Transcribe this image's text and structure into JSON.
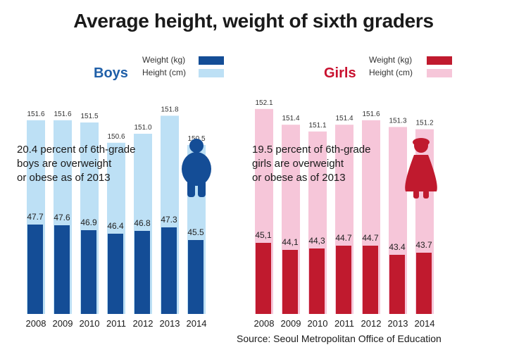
{
  "title": "Average height, weight of sixth graders",
  "source": "Source: Seoul Metropolitan Office of Education",
  "legend": {
    "weight": "Weight (kg)",
    "height": "Height (cm)"
  },
  "colors": {
    "boys_weight": "#144d96",
    "boys_height": "#bde0f5",
    "girls_weight": "#c01a2e",
    "girls_height": "#f6c6d9",
    "boys_label": "#1f5fa8",
    "girls_label": "#c8102e"
  },
  "chart_data": [
    {
      "type": "bar",
      "panel": "Boys",
      "categories": [
        "2008",
        "2009",
        "2010",
        "2011",
        "2012",
        "2013",
        "2014"
      ],
      "series": [
        {
          "name": "Weight (kg)",
          "values": [
            47.7,
            47.6,
            46.9,
            46.4,
            46.8,
            47.3,
            45.5
          ],
          "labels": [
            "47.7",
            "47.6",
            "46.9",
            "46.4",
            "46.8",
            "47.3",
            "45.5"
          ]
        },
        {
          "name": "Height (cm)",
          "values": [
            151.6,
            151.6,
            151.5,
            150.6,
            151.0,
            151.8,
            150.5
          ],
          "labels": [
            "151.6",
            "151.6",
            "151.5",
            "150.6",
            "151.0",
            "151.8",
            "150.5"
          ]
        }
      ],
      "annotation": [
        "20.4 percent of 6th-grade",
        "boys are overweight",
        "or obese as of 2013"
      ],
      "icon": "boy-figure-icon"
    },
    {
      "type": "bar",
      "panel": "Girls",
      "categories": [
        "2008",
        "2009",
        "2010",
        "2011",
        "2012",
        "2013",
        "2014"
      ],
      "series": [
        {
          "name": "Weight (kg)",
          "values": [
            45.1,
            44.1,
            44.3,
            44.7,
            44.7,
            43.4,
            43.7
          ],
          "labels": [
            "45,1",
            "44,1",
            "44,3",
            "44.7",
            "44.7",
            "43.4",
            "43.7"
          ]
        },
        {
          "name": "Height (cm)",
          "values": [
            152.1,
            151.4,
            151.1,
            151.4,
            151.6,
            151.3,
            151.2
          ],
          "labels": [
            "152.1",
            "151.4",
            "151.1",
            "151.4",
            "151.6",
            "151.3",
            "151.2"
          ]
        }
      ],
      "annotation": [
        "19.5 percent of 6th-grade",
        "girls are overweight",
        "or obese as of 2013"
      ],
      "icon": "girl-figure-icon"
    }
  ]
}
